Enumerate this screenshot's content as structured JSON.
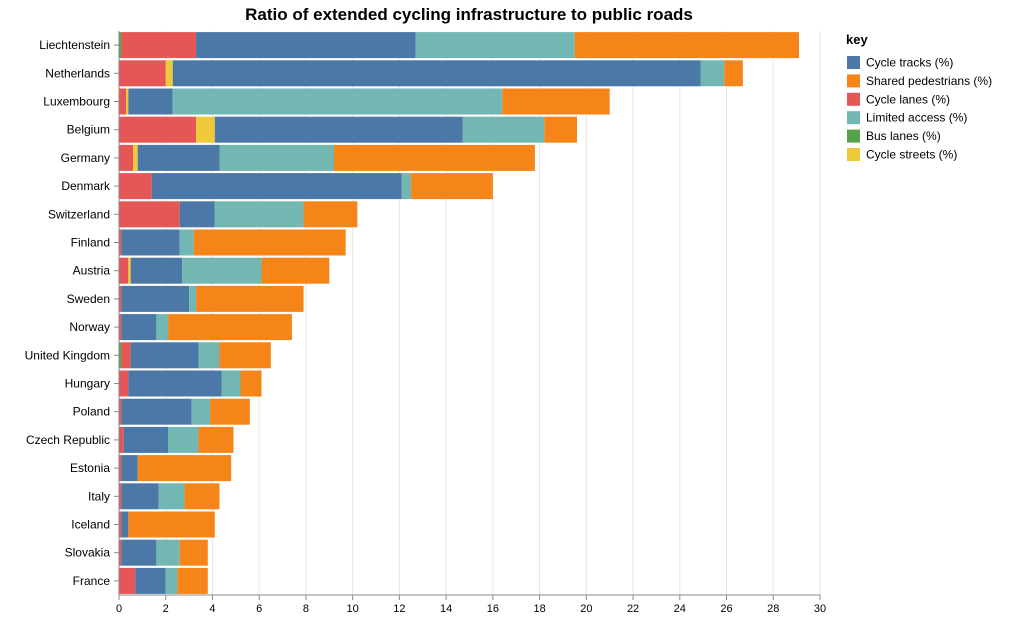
{
  "chart_data": {
    "type": "bar",
    "orientation": "horizontal",
    "stacked": true,
    "title": "Ratio of extended cycling infrastructure to public roads",
    "xlabel": "",
    "ylabel": "",
    "xlim": [
      0,
      30
    ],
    "xticks": [
      "0",
      "2",
      "4",
      "6",
      "8",
      "10",
      "12",
      "14",
      "16",
      "18",
      "20",
      "22",
      "24",
      "26",
      "28",
      "30"
    ],
    "legend_title": "key",
    "legend_position": "right",
    "categories": [
      "Liechtenstein",
      "Netherlands",
      "Luxembourg",
      "Belgium",
      "Germany",
      "Denmark",
      "Switzerland",
      "Finland",
      "Austria",
      "Sweden",
      "Norway",
      "United Kingdom",
      "Hungary",
      "Poland",
      "Czech Republic",
      "Estonia",
      "Italy",
      "Iceland",
      "Slovakia",
      "France"
    ],
    "stack_order": [
      "Bus lanes (%)",
      "Cycle lanes (%)",
      "Cycle streets (%)",
      "Cycle tracks (%)",
      "Limited access (%)",
      "Shared pedestrians (%)"
    ],
    "series": [
      {
        "name": "Cycle tracks (%)",
        "color": "#4c78a8",
        "values": [
          9.4,
          22.6,
          1.9,
          10.6,
          3.5,
          10.7,
          1.5,
          2.5,
          2.2,
          2.9,
          1.5,
          2.9,
          4.0,
          3.0,
          1.9,
          0.7,
          1.6,
          0.3,
          1.5,
          1.3
        ]
      },
      {
        "name": "Shared pedestrians (%)",
        "color": "#f58518",
        "values": [
          9.6,
          0.8,
          4.6,
          1.4,
          8.6,
          3.5,
          2.3,
          6.5,
          2.9,
          4.6,
          5.3,
          2.2,
          0.9,
          1.7,
          1.5,
          4.0,
          1.5,
          3.7,
          1.2,
          1.3
        ]
      },
      {
        "name": "Cycle lanes (%)",
        "color": "#e45756",
        "values": [
          3.2,
          2.0,
          0.3,
          3.3,
          0.6,
          1.4,
          2.6,
          0.1,
          0.4,
          0.1,
          0.1,
          0.4,
          0.4,
          0.1,
          0.2,
          0.1,
          0.1,
          0.1,
          0.1,
          0.7
        ]
      },
      {
        "name": "Limited access (%)",
        "color": "#72b7b2",
        "values": [
          6.8,
          1.0,
          14.1,
          3.5,
          4.9,
          0.4,
          3.8,
          0.6,
          3.4,
          0.3,
          0.5,
          0.9,
          0.8,
          0.8,
          1.3,
          0.0,
          1.1,
          0.0,
          1.0,
          0.5
        ]
      },
      {
        "name": "Bus lanes (%)",
        "color": "#54a24b",
        "values": [
          0.1,
          0.0,
          0.0,
          0.0,
          0.0,
          0.0,
          0.0,
          0.0,
          0.0,
          0.0,
          0.0,
          0.1,
          0.0,
          0.0,
          0.0,
          0.0,
          0.0,
          0.0,
          0.0,
          0.0
        ]
      },
      {
        "name": "Cycle streets (%)",
        "color": "#eeca3b",
        "values": [
          0.0,
          0.3,
          0.1,
          0.8,
          0.2,
          0.0,
          0.0,
          0.0,
          0.1,
          0.0,
          0.0,
          0.0,
          0.0,
          0.0,
          0.0,
          0.0,
          0.0,
          0.0,
          0.0,
          0.0
        ]
      }
    ]
  }
}
